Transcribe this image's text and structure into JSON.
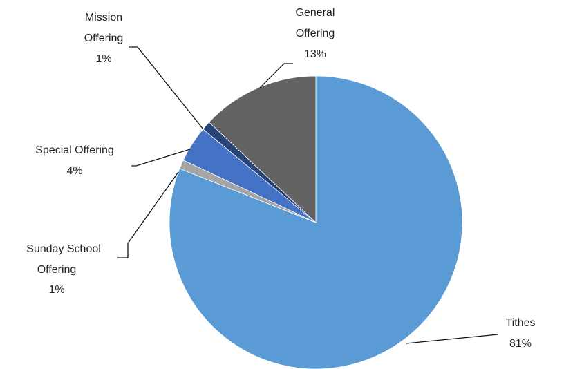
{
  "chart_data": {
    "type": "pie",
    "title": "",
    "start_angle_deg": 0,
    "direction": "clockwise",
    "slices": [
      {
        "label": "Tithes",
        "value": 81,
        "percent_label": "81%",
        "color": "#5B9BD5"
      },
      {
        "label": "Sunday School Offering",
        "value": 1,
        "percent_label": "1%",
        "color": "#A5A5A5"
      },
      {
        "label": "Special Offering",
        "value": 4,
        "percent_label": "4%",
        "color": "#4472C4"
      },
      {
        "label": "Mission Offering",
        "value": 1,
        "percent_label": "1%",
        "color": "#264478"
      },
      {
        "label": "General Offering",
        "value": 13,
        "percent_label": "13%",
        "color": "#636363"
      }
    ]
  }
}
